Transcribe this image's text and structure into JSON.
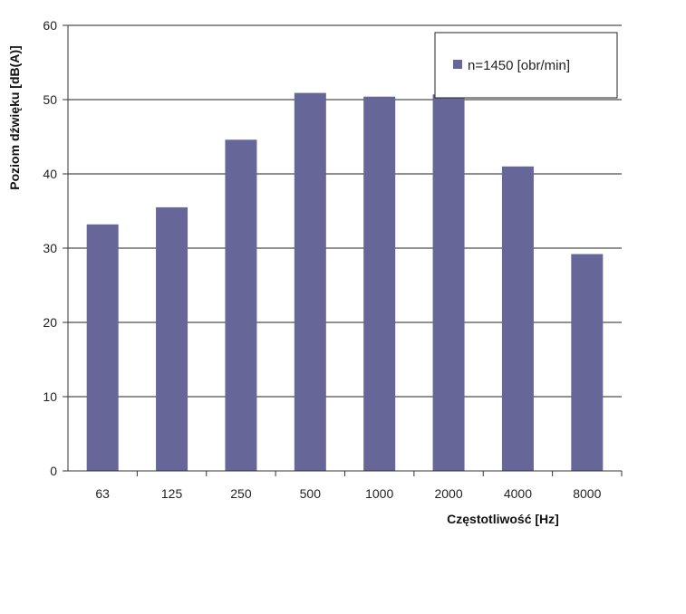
{
  "chart_data": {
    "type": "bar",
    "categories": [
      "63",
      "125",
      "250",
      "500",
      "1000",
      "2000",
      "4000",
      "8000"
    ],
    "series": [
      {
        "name": "n=1450 [obr/min]",
        "values": [
          33.2,
          35.5,
          44.6,
          50.9,
          50.4,
          50.7,
          41.0,
          29.2
        ],
        "color": "#666699"
      }
    ],
    "xlabel": "Częstotliwość [Hz]",
    "ylabel": "Poziom dźwięku [dB(A)]",
    "ylim": [
      0,
      60
    ],
    "yticks": [
      0,
      10,
      20,
      30,
      40,
      50,
      60
    ],
    "grid": true,
    "legend": "top-right"
  }
}
